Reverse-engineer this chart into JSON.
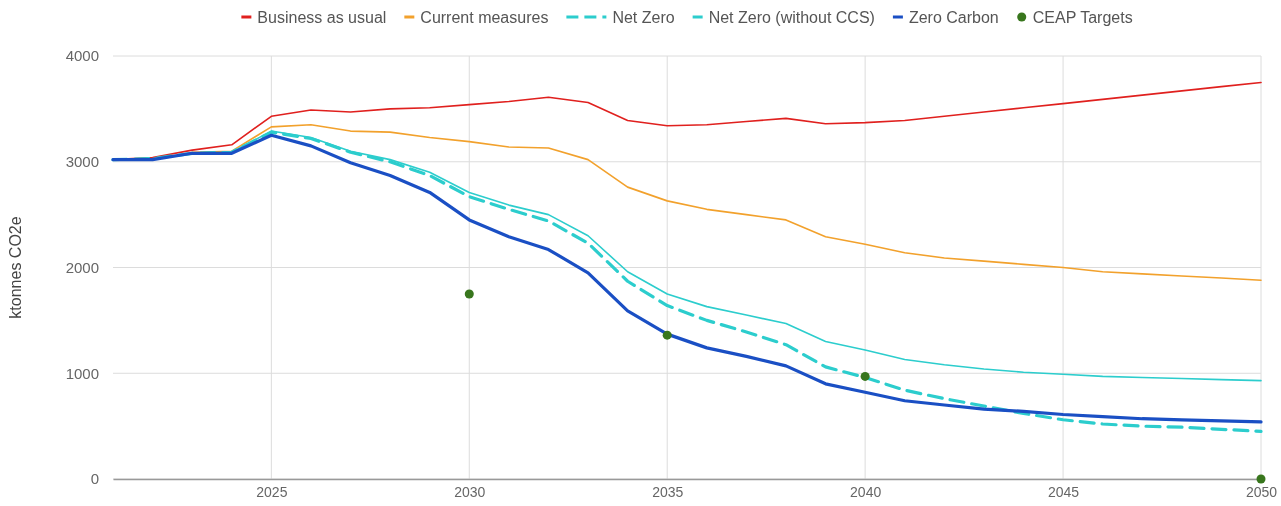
{
  "chart_data": {
    "type": "line",
    "ylabel": "ktonnes CO2e",
    "x": [
      2021,
      2022,
      2023,
      2024,
      2025,
      2026,
      2027,
      2028,
      2029,
      2030,
      2031,
      2032,
      2033,
      2034,
      2035,
      2036,
      2037,
      2038,
      2039,
      2040,
      2041,
      2042,
      2043,
      2044,
      2045,
      2046,
      2047,
      2048,
      2049,
      2050
    ],
    "xlim": [
      2021,
      2050
    ],
    "xticks": [
      2025,
      2030,
      2035,
      2040,
      2045,
      2050
    ],
    "ylim": [
      0,
      4000
    ],
    "yticks": [
      0,
      1000,
      2000,
      3000,
      4000
    ],
    "grid": true,
    "legend": "top",
    "marker": "none",
    "series": [
      {
        "name": "Business as usual",
        "color": "#e0201e",
        "line_style": "solid",
        "values": [
          3020,
          3040,
          3110,
          3160,
          3430,
          3490,
          3470,
          3500,
          3510,
          3540,
          3570,
          3610,
          3560,
          3390,
          3340,
          3350,
          3380,
          3410,
          3360,
          3370,
          3390,
          3430,
          3470,
          3510,
          3550,
          3590,
          3630,
          3670,
          3710,
          3750
        ]
      },
      {
        "name": "Current measures",
        "color": "#f2a12c",
        "line_style": "solid",
        "values": [
          null,
          null,
          3090,
          3100,
          3330,
          3350,
          3290,
          3280,
          3230,
          3190,
          3140,
          3130,
          3020,
          2760,
          2630,
          2550,
          2500,
          2450,
          2290,
          2220,
          2140,
          2090,
          2060,
          2030,
          2000,
          1960,
          1940,
          1920,
          1900,
          1880
        ]
      },
      {
        "name": "Net Zero",
        "color": "#2ccdcd",
        "line_style": "dashed",
        "values": [
          3020,
          3030,
          3080,
          3090,
          3280,
          3220,
          3090,
          3000,
          2870,
          2670,
          2550,
          2440,
          2230,
          1870,
          1640,
          1500,
          1390,
          1270,
          1060,
          960,
          840,
          760,
          690,
          620,
          560,
          520,
          500,
          490,
          470,
          450
        ]
      },
      {
        "name": "Net Zero (without CCS)",
        "color": "#2ccdcd",
        "line_style": "solid",
        "values": [
          3020,
          3030,
          3080,
          3090,
          3290,
          3230,
          3100,
          3020,
          2900,
          2710,
          2590,
          2500,
          2300,
          1960,
          1750,
          1630,
          1550,
          1470,
          1300,
          1220,
          1130,
          1080,
          1040,
          1010,
          990,
          970,
          960,
          950,
          940,
          930
        ]
      },
      {
        "name": "Zero Carbon",
        "color": "#1a4fc4",
        "line_style": "solid",
        "values": [
          3020,
          3020,
          3080,
          3080,
          3250,
          3150,
          2990,
          2870,
          2710,
          2450,
          2290,
          2170,
          1950,
          1590,
          1370,
          1240,
          1160,
          1070,
          900,
          820,
          740,
          700,
          660,
          640,
          610,
          590,
          570,
          560,
          550,
          540
        ]
      },
      {
        "name": "CEAP Targets",
        "type": "scatter",
        "marker": "circle",
        "color": "#38761d",
        "x": [
          2030,
          2035,
          2040,
          2050
        ],
        "values": [
          1750,
          1360,
          970,
          0
        ]
      }
    ]
  }
}
